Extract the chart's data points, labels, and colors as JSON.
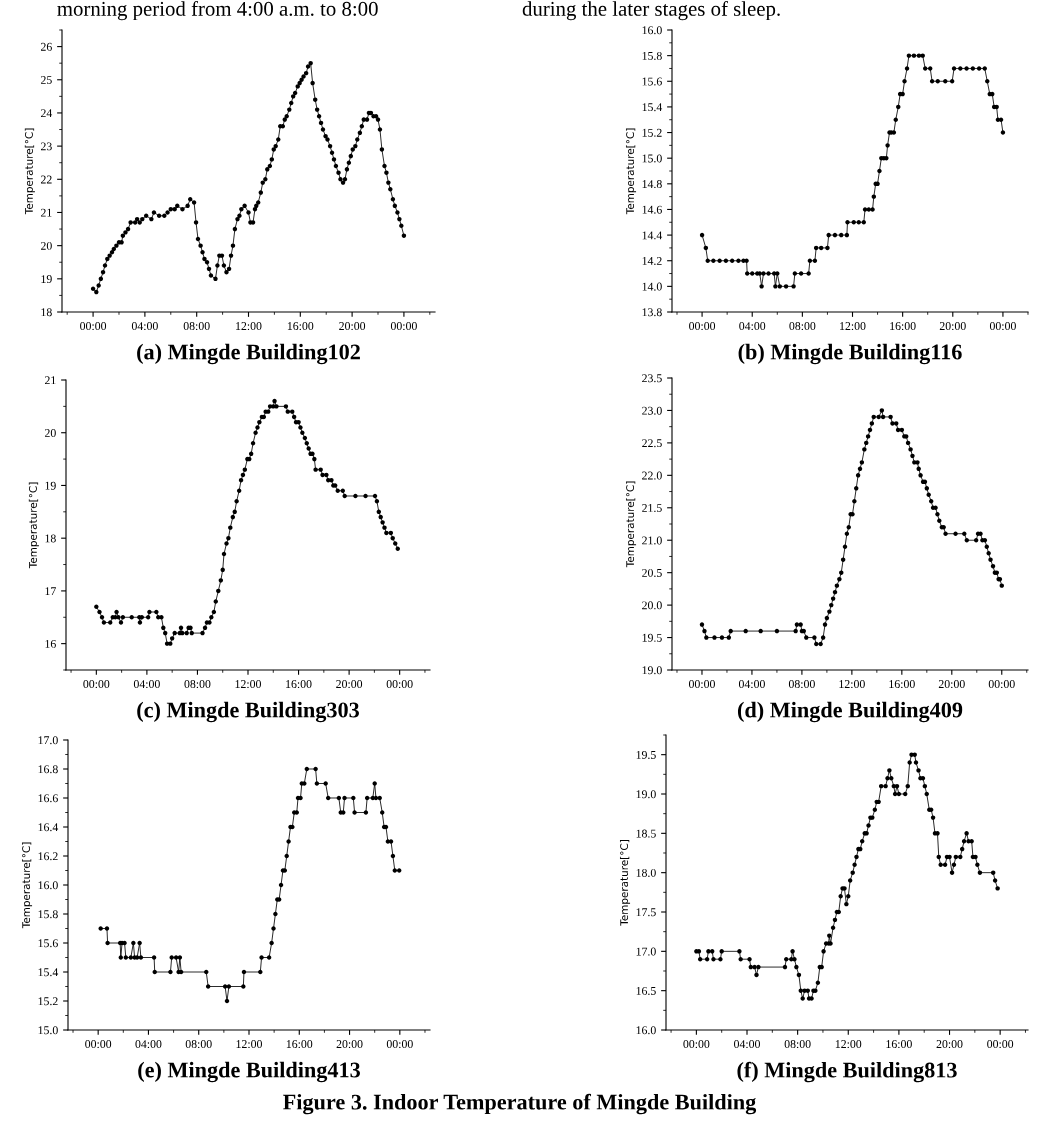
{
  "chart_data": [
    {
      "type": "line",
      "title": "(a) Mingde Building102",
      "ylabel": "Temperature[°C]",
      "annotations": [
        "morning period from 4:00 a.m. to 8:00"
      ],
      "marker": "circle",
      "line_style": "solid",
      "grid": false,
      "legend": false,
      "xlim": [
        -2.4,
        26.4
      ],
      "xticks": [
        {
          "value": 0,
          "label": "00:00"
        },
        {
          "value": 4,
          "label": "04:00"
        },
        {
          "value": 8,
          "label": "08:00"
        },
        {
          "value": 12,
          "label": "12:00"
        },
        {
          "value": 16,
          "label": "16:00"
        },
        {
          "value": 20,
          "label": "20:00"
        },
        {
          "value": 24,
          "label": "00:00"
        }
      ],
      "ylim": [
        18,
        26.5
      ],
      "yticks": [
        18,
        19,
        20,
        21,
        22,
        23,
        24,
        25,
        26
      ],
      "series": [
        {
          "color": "#000000",
          "x": [
            0,
            0.25,
            0.43,
            0.6,
            0.77,
            0.92,
            1.1,
            1.28,
            1.46,
            1.6,
            1.8,
            2.0,
            2.2,
            2.3,
            2.5,
            2.7,
            2.9,
            3.25,
            3.4,
            3.6,
            3.8,
            4.1,
            4.5,
            4.7,
            5.1,
            5.5,
            5.75,
            6.0,
            6.3,
            6.5,
            6.9,
            7.3,
            7.5,
            7.8,
            7.95,
            8.1,
            8.3,
            8.45,
            8.6,
            8.8,
            8.95,
            9.1,
            9.45,
            9.6,
            9.75,
            9.95,
            10.1,
            10.3,
            10.5,
            10.65,
            10.8,
            10.95,
            11.15,
            11.3,
            11.45,
            11.7,
            12.0,
            12.15,
            12.35,
            12.5,
            12.6,
            12.75,
            12.95,
            13.1,
            13.3,
            13.45,
            13.65,
            13.8,
            13.95,
            14.1,
            14.3,
            14.45,
            14.65,
            14.8,
            14.95,
            15.15,
            15.3,
            15.45,
            15.6,
            15.8,
            15.95,
            16.1,
            16.25,
            16.45,
            16.6,
            16.8,
            16.95,
            17.15,
            17.3,
            17.45,
            17.6,
            17.75,
            17.95,
            18.1,
            18.3,
            18.45,
            18.6,
            18.75,
            18.95,
            19.1,
            19.3,
            19.45,
            19.6,
            19.75,
            19.9,
            20.05,
            20.25,
            20.4,
            20.6,
            20.75,
            20.9,
            21.15,
            21.3,
            21.45,
            21.65,
            21.85,
            22.0,
            22.15,
            22.3,
            22.5,
            22.65,
            22.8,
            22.95,
            23.15,
            23.3,
            23.5,
            23.65,
            23.8,
            24.0
          ],
          "values": [
            18.7,
            18.6,
            18.8,
            19.0,
            19.2,
            19.4,
            19.6,
            19.7,
            19.8,
            19.9,
            20.0,
            20.1,
            20.1,
            20.3,
            20.4,
            20.5,
            20.7,
            20.7,
            20.8,
            20.7,
            20.8,
            20.9,
            20.8,
            21.0,
            20.9,
            20.9,
            21.0,
            21.1,
            21.1,
            21.2,
            21.1,
            21.2,
            21.4,
            21.3,
            20.7,
            20.2,
            20.0,
            19.8,
            19.6,
            19.5,
            19.3,
            19.1,
            19.0,
            19.4,
            19.7,
            19.7,
            19.4,
            19.2,
            19.3,
            19.7,
            20.0,
            20.5,
            20.8,
            20.9,
            21.1,
            21.2,
            21.0,
            20.7,
            20.7,
            21.1,
            21.2,
            21.3,
            21.6,
            21.9,
            22.0,
            22.3,
            22.4,
            22.6,
            22.9,
            23.0,
            23.2,
            23.6,
            23.6,
            23.8,
            23.9,
            24.1,
            24.3,
            24.5,
            24.6,
            24.8,
            24.9,
            25.0,
            25.1,
            25.2,
            25.4,
            25.5,
            24.9,
            24.4,
            24.1,
            23.9,
            23.7,
            23.5,
            23.3,
            23.2,
            23.0,
            22.8,
            22.6,
            22.4,
            22.2,
            22.0,
            21.9,
            22.0,
            22.3,
            22.5,
            22.7,
            22.9,
            23.0,
            23.2,
            23.4,
            23.6,
            23.8,
            23.8,
            24.0,
            24.0,
            23.9,
            23.9,
            23.8,
            23.5,
            22.9,
            22.4,
            22.2,
            21.9,
            21.7,
            21.4,
            21.2,
            21.0,
            20.8,
            20.6,
            20.3
          ]
        }
      ]
    },
    {
      "type": "line",
      "title": "(b) Mingde Building116",
      "ylabel": "Temperature[°C]",
      "annotations": [
        "during the later stages of sleep."
      ],
      "marker": "circle",
      "line_style": "solid",
      "grid": false,
      "legend": false,
      "xlim": [
        -2.4,
        26.0
      ],
      "xticks": [
        {
          "value": 0,
          "label": "00:00"
        },
        {
          "value": 4,
          "label": "04:00"
        },
        {
          "value": 8,
          "label": "08:00"
        },
        {
          "value": 12,
          "label": "12:00"
        },
        {
          "value": 16,
          "label": "16:00"
        },
        {
          "value": 20,
          "label": "20:00"
        },
        {
          "value": 24,
          "label": "00:00"
        }
      ],
      "ylim": [
        13.8,
        16.0
      ],
      "yticks": [
        {
          "value": 13.8,
          "label": "13.8"
        },
        {
          "value": 14.0,
          "label": "14.0"
        },
        {
          "value": 14.2,
          "label": "14.2"
        },
        {
          "value": 14.4,
          "label": "14.4"
        },
        {
          "value": 14.6,
          "label": "14.6"
        },
        {
          "value": 14.8,
          "label": "14.8"
        },
        {
          "value": 15.0,
          "label": "15.0"
        },
        {
          "value": 15.2,
          "label": "15.2"
        },
        {
          "value": 15.4,
          "label": "15.4"
        },
        {
          "value": 15.6,
          "label": "15.6"
        },
        {
          "value": 15.8,
          "label": "15.8"
        },
        {
          "value": 16.0,
          "label": "16.0"
        }
      ],
      "series": [
        {
          "color": "#000000",
          "x": [
            0,
            0.3,
            0.45,
            0.9,
            1.4,
            1.9,
            2.4,
            2.9,
            3.3,
            3.55,
            3.6,
            4.0,
            4.4,
            4.6,
            4.75,
            4.9,
            5.3,
            5.75,
            5.85,
            6.0,
            6.2,
            6.7,
            7.3,
            7.4,
            7.9,
            8.5,
            8.6,
            9.0,
            9.1,
            9.5,
            10.0,
            10.1,
            10.6,
            11.1,
            11.55,
            11.6,
            12.1,
            12.5,
            12.9,
            13.0,
            13.3,
            13.6,
            13.7,
            13.85,
            14.0,
            14.15,
            14.3,
            14.5,
            14.7,
            14.8,
            14.95,
            15.1,
            15.3,
            15.45,
            15.65,
            15.8,
            16.0,
            16.15,
            16.35,
            16.5,
            16.9,
            17.3,
            17.6,
            17.8,
            18.2,
            18.35,
            18.8,
            19.4,
            19.95,
            20.1,
            20.6,
            21.1,
            21.6,
            22.1,
            22.55,
            22.75,
            22.95,
            23.15,
            23.3,
            23.5,
            23.6,
            23.85,
            24.0
          ],
          "values": [
            14.4,
            14.3,
            14.2,
            14.2,
            14.2,
            14.2,
            14.2,
            14.2,
            14.2,
            14.2,
            14.1,
            14.1,
            14.1,
            14.1,
            14.0,
            14.1,
            14.1,
            14.1,
            14.0,
            14.1,
            14.0,
            14.0,
            14.0,
            14.1,
            14.1,
            14.1,
            14.2,
            14.2,
            14.3,
            14.3,
            14.3,
            14.4,
            14.4,
            14.4,
            14.4,
            14.5,
            14.5,
            14.5,
            14.5,
            14.6,
            14.6,
            14.6,
            14.7,
            14.8,
            14.8,
            14.9,
            15.0,
            15.0,
            15.0,
            15.1,
            15.2,
            15.2,
            15.2,
            15.3,
            15.4,
            15.5,
            15.5,
            15.6,
            15.7,
            15.8,
            15.8,
            15.8,
            15.8,
            15.7,
            15.7,
            15.6,
            15.6,
            15.6,
            15.6,
            15.7,
            15.7,
            15.7,
            15.7,
            15.7,
            15.7,
            15.6,
            15.5,
            15.5,
            15.4,
            15.4,
            15.3,
            15.3,
            15.2
          ]
        }
      ]
    },
    {
      "type": "line",
      "title": "(c) Mingde Building303",
      "ylabel": "Temperature[°C]",
      "marker": "circle",
      "line_style": "solid",
      "grid": false,
      "legend": false,
      "xlim": [
        -2.4,
        26.4
      ],
      "xticks": [
        {
          "value": 0,
          "label": "00:00"
        },
        {
          "value": 4,
          "label": "04:00"
        },
        {
          "value": 8,
          "label": "08:00"
        },
        {
          "value": 12,
          "label": "12:00"
        },
        {
          "value": 16,
          "label": "16:00"
        },
        {
          "value": 20,
          "label": "20:00"
        },
        {
          "value": 24,
          "label": "00:00"
        }
      ],
      "ylim": [
        15.5,
        21
      ],
      "yticks": [
        16,
        17,
        18,
        19,
        20,
        21
      ],
      "series": [
        {
          "color": "#000000",
          "x": [
            0,
            0.25,
            0.45,
            0.6,
            1.1,
            1.3,
            1.5,
            1.6,
            1.75,
            1.95,
            2.1,
            2.8,
            3.4,
            3.45,
            3.6,
            4.1,
            4.2,
            4.75,
            4.9,
            5.15,
            5.3,
            5.45,
            5.6,
            5.85,
            6.0,
            6.2,
            6.6,
            6.7,
            6.8,
            7.15,
            7.3,
            7.45,
            7.55,
            8.4,
            8.6,
            8.75,
            8.95,
            9.1,
            9.3,
            9.45,
            9.65,
            9.85,
            10.0,
            10.1,
            10.3,
            10.45,
            10.6,
            10.8,
            10.95,
            11.1,
            11.3,
            11.45,
            11.6,
            11.75,
            11.95,
            12.1,
            12.25,
            12.4,
            12.6,
            12.75,
            12.9,
            13.1,
            13.25,
            13.4,
            13.6,
            13.75,
            14.0,
            14.1,
            14.25,
            15.0,
            15.15,
            15.5,
            15.65,
            15.8,
            16.0,
            16.15,
            16.3,
            16.5,
            16.65,
            16.8,
            16.95,
            17.1,
            17.25,
            17.35,
            17.75,
            17.9,
            18.2,
            18.35,
            18.6,
            18.75,
            18.9,
            19.1,
            19.5,
            19.65,
            20.5,
            21.3,
            22.05,
            22.2,
            22.35,
            22.5,
            22.65,
            22.8,
            22.95,
            23.3,
            23.45,
            23.65,
            23.85
          ],
          "values": [
            16.7,
            16.6,
            16.5,
            16.4,
            16.4,
            16.5,
            16.5,
            16.6,
            16.5,
            16.4,
            16.5,
            16.5,
            16.5,
            16.4,
            16.5,
            16.5,
            16.6,
            16.6,
            16.5,
            16.5,
            16.3,
            16.2,
            16.0,
            16.0,
            16.1,
            16.2,
            16.2,
            16.3,
            16.2,
            16.2,
            16.3,
            16.3,
            16.2,
            16.2,
            16.3,
            16.4,
            16.4,
            16.5,
            16.6,
            16.8,
            17.0,
            17.2,
            17.4,
            17.7,
            17.9,
            18.0,
            18.2,
            18.4,
            18.5,
            18.7,
            18.9,
            19.1,
            19.2,
            19.3,
            19.5,
            19.5,
            19.6,
            19.8,
            20.0,
            20.1,
            20.2,
            20.3,
            20.3,
            20.4,
            20.4,
            20.5,
            20.5,
            20.6,
            20.5,
            20.5,
            20.4,
            20.4,
            20.3,
            20.2,
            20.2,
            20.1,
            20.0,
            19.9,
            19.8,
            19.7,
            19.6,
            19.6,
            19.5,
            19.3,
            19.3,
            19.2,
            19.2,
            19.1,
            19.1,
            19.0,
            19.0,
            18.9,
            18.9,
            18.8,
            18.8,
            18.8,
            18.8,
            18.7,
            18.5,
            18.4,
            18.3,
            18.2,
            18.1,
            18.1,
            18.0,
            17.9,
            17.8
          ]
        }
      ]
    },
    {
      "type": "line",
      "title": "(d) Mingde Building409",
      "ylabel": "Temperature[°C]",
      "marker": "circle",
      "line_style": "solid",
      "grid": false,
      "legend": false,
      "xlim": [
        -2.4,
        26.1
      ],
      "xticks": [
        {
          "value": 0,
          "label": "00:00"
        },
        {
          "value": 4,
          "label": "04:00"
        },
        {
          "value": 8,
          "label": "08:00"
        },
        {
          "value": 12,
          "label": "12:00"
        },
        {
          "value": 16,
          "label": "16:00"
        },
        {
          "value": 20,
          "label": "20:00"
        },
        {
          "value": 24,
          "label": "00:00"
        }
      ],
      "ylim": [
        19.0,
        23.5
      ],
      "yticks": [
        {
          "value": 19.0,
          "label": "19.0"
        },
        {
          "value": 19.5,
          "label": "19.5"
        },
        {
          "value": 20.0,
          "label": "20.0"
        },
        {
          "value": 20.5,
          "label": "20.5"
        },
        {
          "value": 21.0,
          "label": "21.0"
        },
        {
          "value": 21.5,
          "label": "21.5"
        },
        {
          "value": 22.0,
          "label": "22.0"
        },
        {
          "value": 22.5,
          "label": "22.5"
        },
        {
          "value": 23.0,
          "label": "23.0"
        },
        {
          "value": 23.5,
          "label": "23.5"
        }
      ],
      "series": [
        {
          "color": "#000000",
          "x": [
            0,
            0.2,
            0.35,
            1.0,
            1.6,
            2.15,
            2.3,
            3.5,
            4.7,
            6.0,
            7.5,
            7.6,
            7.9,
            8.0,
            8.15,
            8.35,
            9.0,
            9.15,
            9.5,
            9.7,
            9.85,
            10.0,
            10.2,
            10.35,
            10.5,
            10.65,
            10.8,
            11.0,
            11.15,
            11.3,
            11.45,
            11.6,
            11.75,
            11.9,
            12.05,
            12.2,
            12.35,
            12.5,
            12.65,
            12.8,
            13.0,
            13.15,
            13.3,
            13.45,
            13.6,
            13.75,
            14.15,
            14.4,
            14.5,
            15.1,
            15.25,
            15.55,
            15.7,
            16.0,
            16.2,
            16.35,
            16.5,
            16.7,
            16.85,
            17.0,
            17.25,
            17.35,
            17.5,
            17.7,
            17.85,
            18.0,
            18.15,
            18.35,
            18.5,
            18.7,
            18.85,
            19.0,
            19.2,
            19.35,
            19.5,
            20.3,
            21.0,
            21.2,
            21.95,
            22.1,
            22.3,
            22.45,
            22.65,
            22.8,
            22.95,
            23.1,
            23.3,
            23.45,
            23.6,
            23.75,
            23.85,
            24.0
          ],
          "values": [
            19.7,
            19.6,
            19.5,
            19.5,
            19.5,
            19.5,
            19.6,
            19.6,
            19.6,
            19.6,
            19.6,
            19.7,
            19.7,
            19.6,
            19.6,
            19.5,
            19.5,
            19.4,
            19.4,
            19.5,
            19.7,
            19.8,
            19.9,
            20.0,
            20.1,
            20.2,
            20.3,
            20.4,
            20.5,
            20.7,
            20.9,
            21.1,
            21.2,
            21.4,
            21.4,
            21.6,
            21.8,
            22.0,
            22.1,
            22.2,
            22.4,
            22.5,
            22.6,
            22.7,
            22.8,
            22.9,
            22.9,
            23.0,
            22.9,
            22.9,
            22.8,
            22.8,
            22.7,
            22.7,
            22.6,
            22.6,
            22.5,
            22.4,
            22.3,
            22.2,
            22.2,
            22.1,
            22.0,
            21.9,
            21.9,
            21.8,
            21.7,
            21.6,
            21.5,
            21.5,
            21.4,
            21.3,
            21.2,
            21.2,
            21.1,
            21.1,
            21.1,
            21.0,
            21.0,
            21.1,
            21.1,
            21.0,
            21.0,
            20.9,
            20.8,
            20.7,
            20.6,
            20.5,
            20.5,
            20.4,
            20.4,
            20.3
          ]
        }
      ]
    },
    {
      "type": "line",
      "title": "(e) Mingde Building413",
      "ylabel": "Temperature[°C]",
      "marker": "circle",
      "line_style": "solid",
      "grid": false,
      "legend": false,
      "xlim": [
        -2.4,
        26.4
      ],
      "xticks": [
        {
          "value": 0,
          "label": "00:00"
        },
        {
          "value": 4,
          "label": "04:00"
        },
        {
          "value": 8,
          "label": "08:00"
        },
        {
          "value": 12,
          "label": "12:00"
        },
        {
          "value": 16,
          "label": "16:00"
        },
        {
          "value": 20,
          "label": "20:00"
        },
        {
          "value": 24,
          "label": "00:00"
        }
      ],
      "ylim": [
        15.0,
        17.0
      ],
      "yticks": [
        {
          "value": 15.0,
          "label": "15.0"
        },
        {
          "value": 15.2,
          "label": "15.2"
        },
        {
          "value": 15.4,
          "label": "15.4"
        },
        {
          "value": 15.6,
          "label": "15.6"
        },
        {
          "value": 15.8,
          "label": "15.8"
        },
        {
          "value": 16.0,
          "label": "16.0"
        },
        {
          "value": 16.2,
          "label": "16.2"
        },
        {
          "value": 16.4,
          "label": "16.4"
        },
        {
          "value": 16.6,
          "label": "16.6"
        },
        {
          "value": 16.8,
          "label": "16.8"
        },
        {
          "value": 17.0,
          "label": "17.0"
        }
      ],
      "series": [
        {
          "color": "#000000",
          "x": [
            0.2,
            0.7,
            0.75,
            1.75,
            1.8,
            1.9,
            2.1,
            2.2,
            2.6,
            2.8,
            2.9,
            3.1,
            3.3,
            3.4,
            4.45,
            4.5,
            5.75,
            5.85,
            6.2,
            6.4,
            6.5,
            6.6,
            8.6,
            8.75,
            10.1,
            10.25,
            10.4,
            11.55,
            11.6,
            12.9,
            13.0,
            13.6,
            13.8,
            13.95,
            14.1,
            14.25,
            14.4,
            14.55,
            14.7,
            14.85,
            15.0,
            15.15,
            15.3,
            15.45,
            15.6,
            15.8,
            15.9,
            16.1,
            16.2,
            16.4,
            16.6,
            17.3,
            17.4,
            18.1,
            18.3,
            19.15,
            19.3,
            19.5,
            19.6,
            20.3,
            20.4,
            21.3,
            21.4,
            21.85,
            22.0,
            22.1,
            22.4,
            22.6,
            22.75,
            22.9,
            23.05,
            23.3,
            23.45,
            23.6,
            23.95
          ],
          "values": [
            15.7,
            15.7,
            15.6,
            15.6,
            15.5,
            15.6,
            15.6,
            15.5,
            15.5,
            15.6,
            15.5,
            15.5,
            15.6,
            15.5,
            15.5,
            15.4,
            15.4,
            15.5,
            15.5,
            15.4,
            15.5,
            15.4,
            15.4,
            15.3,
            15.3,
            15.2,
            15.3,
            15.3,
            15.4,
            15.4,
            15.5,
            15.5,
            15.6,
            15.7,
            15.8,
            15.9,
            15.9,
            16.0,
            16.1,
            16.1,
            16.2,
            16.3,
            16.4,
            16.4,
            16.5,
            16.5,
            16.6,
            16.6,
            16.7,
            16.7,
            16.8,
            16.8,
            16.7,
            16.7,
            16.6,
            16.6,
            16.5,
            16.5,
            16.6,
            16.6,
            16.5,
            16.5,
            16.6,
            16.6,
            16.7,
            16.6,
            16.6,
            16.5,
            16.4,
            16.4,
            16.3,
            16.3,
            16.2,
            16.1,
            16.1
          ]
        }
      ]
    },
    {
      "type": "line",
      "title": "(f) Mingde Building813",
      "ylabel": "Temperature[°C]",
      "annotations": [
        "Figure 3. Indoor Temperature of Mingde Building"
      ],
      "marker": "circle",
      "line_style": "solid",
      "grid": false,
      "legend": false,
      "xlim": [
        -2.4,
        26.2
      ],
      "xticks": [
        {
          "value": 0,
          "label": "00:00"
        },
        {
          "value": 4,
          "label": "04:00"
        },
        {
          "value": 8,
          "label": "08:00"
        },
        {
          "value": 12,
          "label": "12:00"
        },
        {
          "value": 16,
          "label": "16:00"
        },
        {
          "value": 20,
          "label": "20:00"
        },
        {
          "value": 24,
          "label": "00:00"
        }
      ],
      "ylim": [
        16.0,
        19.75
      ],
      "yticks": [
        {
          "value": 16.0,
          "label": "16.0"
        },
        {
          "value": 16.5,
          "label": "16.5"
        },
        {
          "value": 17.0,
          "label": "17.0"
        },
        {
          "value": 17.5,
          "label": "17.5"
        },
        {
          "value": 18.0,
          "label": "18.0"
        },
        {
          "value": 18.5,
          "label": "18.5"
        },
        {
          "value": 19.0,
          "label": "19.0"
        },
        {
          "value": 19.5,
          "label": "19.5"
        }
      ],
      "series": [
        {
          "color": "#000000",
          "x": [
            0,
            0.2,
            0.3,
            0.85,
            0.95,
            1.25,
            1.35,
            1.9,
            2.0,
            3.4,
            3.5,
            4.2,
            4.3,
            4.6,
            4.75,
            4.9,
            7.0,
            7.1,
            7.5,
            7.6,
            7.75,
            7.9,
            8.1,
            8.25,
            8.4,
            8.55,
            8.8,
            8.9,
            9.1,
            9.25,
            9.4,
            9.6,
            9.75,
            9.9,
            10.05,
            10.25,
            10.45,
            10.5,
            10.6,
            10.8,
            10.95,
            11.1,
            11.25,
            11.4,
            11.55,
            11.7,
            11.85,
            12.0,
            12.15,
            12.35,
            12.5,
            12.65,
            12.8,
            12.95,
            13.1,
            13.3,
            13.45,
            13.6,
            13.75,
            13.9,
            14.1,
            14.25,
            14.4,
            14.6,
            14.95,
            15.1,
            15.25,
            15.4,
            15.6,
            15.7,
            15.85,
            16.0,
            16.5,
            16.7,
            16.85,
            17.0,
            17.25,
            17.35,
            17.55,
            17.7,
            17.9,
            18.05,
            18.2,
            18.4,
            18.55,
            18.7,
            18.85,
            19.05,
            19.15,
            19.3,
            19.65,
            19.8,
            20.0,
            20.2,
            20.35,
            20.5,
            20.85,
            21.0,
            21.15,
            21.35,
            21.5,
            21.75,
            21.85,
            22.05,
            22.2,
            22.4,
            23.45,
            23.6,
            23.8
          ],
          "values": [
            17.0,
            17.0,
            16.9,
            16.9,
            17.0,
            17.0,
            16.9,
            16.9,
            17.0,
            17.0,
            16.9,
            16.9,
            16.8,
            16.8,
            16.7,
            16.8,
            16.8,
            16.9,
            16.9,
            17.0,
            16.9,
            16.8,
            16.7,
            16.5,
            16.4,
            16.5,
            16.5,
            16.4,
            16.4,
            16.5,
            16.5,
            16.6,
            16.8,
            16.8,
            17.0,
            17.1,
            17.1,
            17.2,
            17.1,
            17.3,
            17.4,
            17.5,
            17.5,
            17.7,
            17.8,
            17.8,
            17.6,
            17.7,
            17.9,
            18.0,
            18.1,
            18.2,
            18.3,
            18.3,
            18.4,
            18.5,
            18.5,
            18.6,
            18.7,
            18.7,
            18.8,
            18.9,
            18.9,
            19.1,
            19.1,
            19.2,
            19.3,
            19.2,
            19.1,
            19.0,
            19.1,
            19.0,
            19.0,
            19.1,
            19.4,
            19.5,
            19.5,
            19.4,
            19.3,
            19.2,
            19.2,
            19.1,
            19.0,
            18.8,
            18.8,
            18.7,
            18.5,
            18.5,
            18.2,
            18.1,
            18.1,
            18.2,
            18.2,
            18.0,
            18.1,
            18.2,
            18.2,
            18.3,
            18.4,
            18.5,
            18.4,
            18.4,
            18.2,
            18.2,
            18.1,
            18.0,
            18.0,
            17.9,
            17.8
          ]
        }
      ]
    }
  ]
}
